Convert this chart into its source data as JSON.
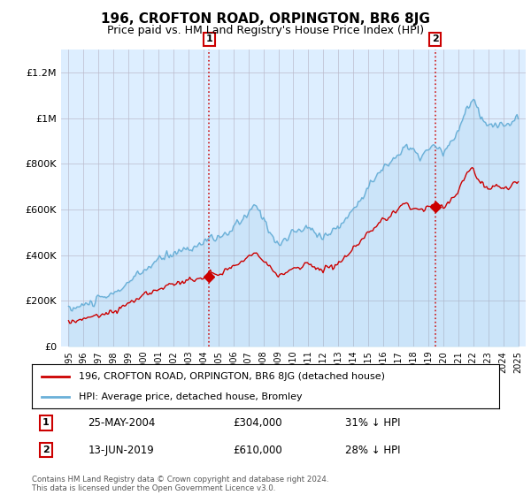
{
  "title": "196, CROFTON ROAD, ORPINGTON, BR6 8JG",
  "subtitle": "Price paid vs. HM Land Registry's House Price Index (HPI)",
  "title_fontsize": 11,
  "subtitle_fontsize": 9,
  "background_color": "#ffffff",
  "plot_bg_color": "#ddeeff",
  "grid_color": "#bbbbcc",
  "ylabel_ticks": [
    "£0",
    "£200K",
    "£400K",
    "£600K",
    "£800K",
    "£1M",
    "£1.2M"
  ],
  "ytick_values": [
    0,
    200000,
    400000,
    600000,
    800000,
    1000000,
    1200000
  ],
  "ylim": [
    0,
    1300000
  ],
  "xlim_start": 1994.5,
  "xlim_end": 2025.5,
  "xtick_years": [
    1995,
    1996,
    1997,
    1998,
    1999,
    2000,
    2001,
    2002,
    2003,
    2004,
    2005,
    2006,
    2007,
    2008,
    2009,
    2010,
    2011,
    2012,
    2013,
    2014,
    2015,
    2016,
    2017,
    2018,
    2019,
    2020,
    2021,
    2022,
    2023,
    2024,
    2025
  ],
  "hpi_color": "#6ab0d8",
  "price_color": "#cc0000",
  "marker1_x": 2004.38,
  "marker1_y_price": 304000,
  "marker2_x": 2019.45,
  "marker2_y_price": 610000,
  "legend_label_price": "196, CROFTON ROAD, ORPINGTON, BR6 8JG (detached house)",
  "legend_label_hpi": "HPI: Average price, detached house, Bromley",
  "note1_label": "1",
  "note1_date": "25-MAY-2004",
  "note1_price": "£304,000",
  "note1_pct": "31% ↓ HPI",
  "note2_label": "2",
  "note2_date": "13-JUN-2019",
  "note2_price": "£610,000",
  "note2_pct": "28% ↓ HPI",
  "footer": "Contains HM Land Registry data © Crown copyright and database right 2024.\nThis data is licensed under the Open Government Licence v3.0."
}
